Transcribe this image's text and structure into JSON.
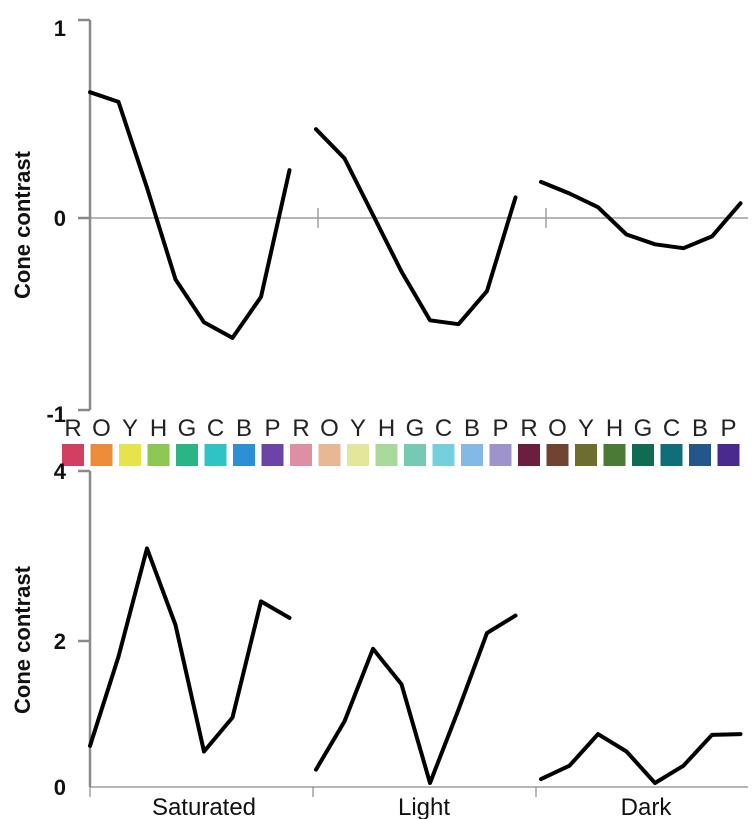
{
  "chart_data": [
    {
      "type": "line",
      "title": "",
      "xlabel": "",
      "ylabel": "Cone contrast",
      "ylim": [
        -1,
        1
      ],
      "yticks": [
        "1",
        "0",
        "-1"
      ],
      "categories": [
        "R",
        "O",
        "Y",
        "H",
        "G",
        "C",
        "B",
        "P"
      ],
      "series": [
        {
          "values": [
            0.63,
            0.58,
            0.14,
            -0.33,
            -0.55,
            -0.63,
            -0.42,
            0.23
          ]
        },
        {
          "values": [
            0.44,
            0.29,
            0.0,
            -0.29,
            -0.54,
            -0.56,
            -0.39,
            0.09
          ]
        },
        {
          "values": [
            0.17,
            0.11,
            0.04,
            -0.1,
            -0.15,
            -0.17,
            -0.11,
            0.06
          ]
        }
      ]
    },
    {
      "type": "line",
      "title": "",
      "xlabel": "",
      "ylabel": "Cone contrast",
      "ylim": [
        0,
        4
      ],
      "yticks": [
        "4",
        "2",
        "0"
      ],
      "groups": [
        "Saturated",
        "Light",
        "Dark"
      ],
      "categories": [
        "R",
        "O",
        "Y",
        "H",
        "G",
        "C",
        "B",
        "P"
      ],
      "series": [
        {
          "values": [
            0.52,
            1.65,
            3.02,
            2.05,
            0.45,
            0.88,
            2.35,
            2.14
          ]
        },
        {
          "values": [
            0.22,
            0.83,
            1.75,
            1.3,
            0.05,
            0.98,
            1.95,
            2.17
          ]
        },
        {
          "values": [
            0.1,
            0.27,
            0.67,
            0.45,
            0.05,
            0.27,
            0.66,
            0.67
          ]
        }
      ]
    }
  ],
  "legend": {
    "letters": [
      "R",
      "O",
      "Y",
      "H",
      "G",
      "C",
      "B",
      "P"
    ],
    "swatches": [
      [
        "#d23f61",
        "#ec8b3a",
        "#e6e44d",
        "#8dc653",
        "#2bb485",
        "#2fc3c6",
        "#2d8fd6",
        "#6a44a6"
      ],
      [
        "#df8fa3",
        "#e8b894",
        "#e2e79c",
        "#a8d89a",
        "#76c9b3",
        "#73d0dc",
        "#84b8e6",
        "#9f93cc"
      ],
      [
        "#6b1e3e",
        "#6e4430",
        "#6d6e2d",
        "#4a7a36",
        "#0f6b52",
        "#0f6e77",
        "#23568a",
        "#4a2a8e"
      ]
    ]
  }
}
